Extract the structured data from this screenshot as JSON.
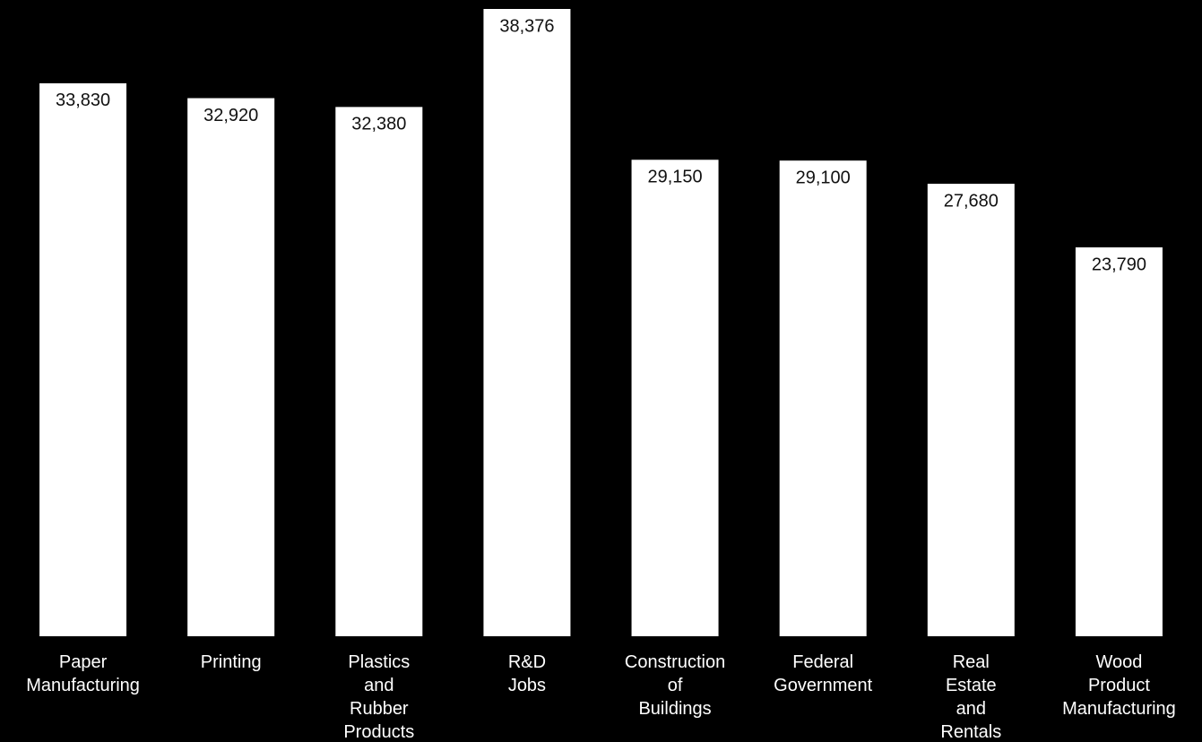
{
  "chart_data": {
    "type": "bar",
    "categories": [
      "Paper Manufacturing",
      "Printing",
      "Plastics and Rubber Products",
      "R&D Jobs",
      "Construction of Buildings",
      "Federal Government",
      "Real Estate and Rentals",
      "Wood Product Manufacturing"
    ],
    "values": [
      33830,
      32920,
      32380,
      38376,
      29150,
      29100,
      27680,
      23790
    ],
    "value_labels": [
      "33,830",
      "32,920",
      "32,380",
      "38,376",
      "29,150",
      "29,100",
      "27,680",
      "23,790"
    ],
    "color": "#ffffff"
  }
}
